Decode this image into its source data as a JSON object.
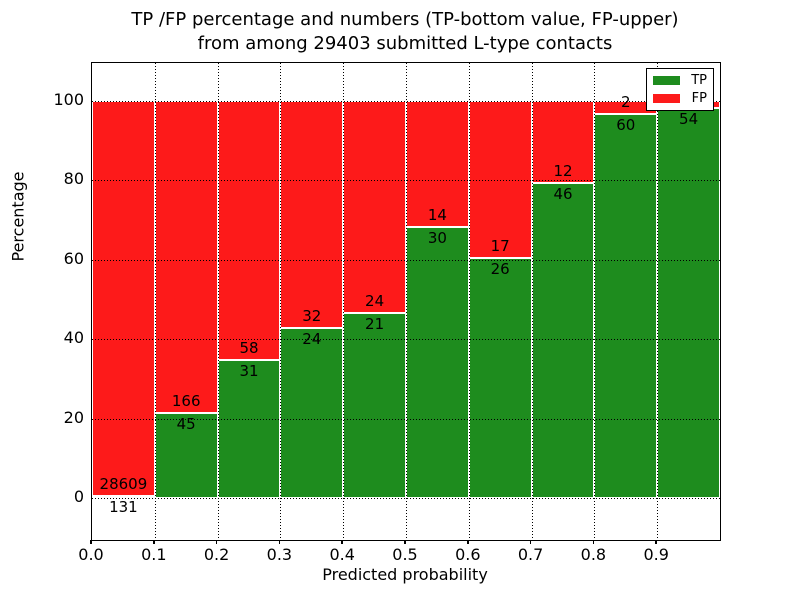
{
  "figure": {
    "title_lines": [
      "TP /FP percentage and numbers (TP-bottom value, FP-upper)",
      "from among 29403 submitted L-type contacts"
    ],
    "background_color": "#ffffff",
    "text_color": "#000000"
  },
  "chart_data": {
    "type": "bar",
    "variant": "stacked-percentage",
    "title": "TP /FP percentage and numbers (TP-bottom value, FP-upper) from among 29403 submitted L-type contacts",
    "xlabel": "Predicted probability",
    "ylabel": "Percentage",
    "x_tick_labels": [
      "0.0",
      "0.1",
      "0.2",
      "0.3",
      "0.4",
      "0.5",
      "0.6",
      "0.7",
      "0.8",
      "0.9"
    ],
    "y_ticks": [
      0,
      20,
      40,
      60,
      80,
      100
    ],
    "xlim": [
      0.0,
      1.0
    ],
    "ylim": [
      -10.6,
      109.6
    ],
    "grid": {
      "style": "dotted",
      "color": "#000000",
      "axes": "both"
    },
    "bar_edge_color": "#ffffff",
    "bins": [
      [
        0.0,
        0.1
      ],
      [
        0.1,
        0.2
      ],
      [
        0.2,
        0.3
      ],
      [
        0.3,
        0.4
      ],
      [
        0.4,
        0.5
      ],
      [
        0.5,
        0.6
      ],
      [
        0.6,
        0.7
      ],
      [
        0.7,
        0.8
      ],
      [
        0.8,
        0.9
      ],
      [
        0.9,
        1.0
      ]
    ],
    "series": [
      {
        "name": "TP",
        "color": "#1e8c1e",
        "values": [
          131,
          45,
          31,
          24,
          21,
          30,
          26,
          46,
          60,
          54
        ]
      },
      {
        "name": "FP",
        "color": "#fd1a1a",
        "values": [
          28609,
          166,
          58,
          32,
          24,
          14,
          17,
          12,
          2,
          1
        ]
      }
    ],
    "fp_label_hidden_bin": 9,
    "legend": {
      "position": "upper right",
      "entries": [
        {
          "label": "TP",
          "color": "#1e8c1e"
        },
        {
          "label": "FP",
          "color": "#fd1a1a"
        }
      ]
    }
  }
}
